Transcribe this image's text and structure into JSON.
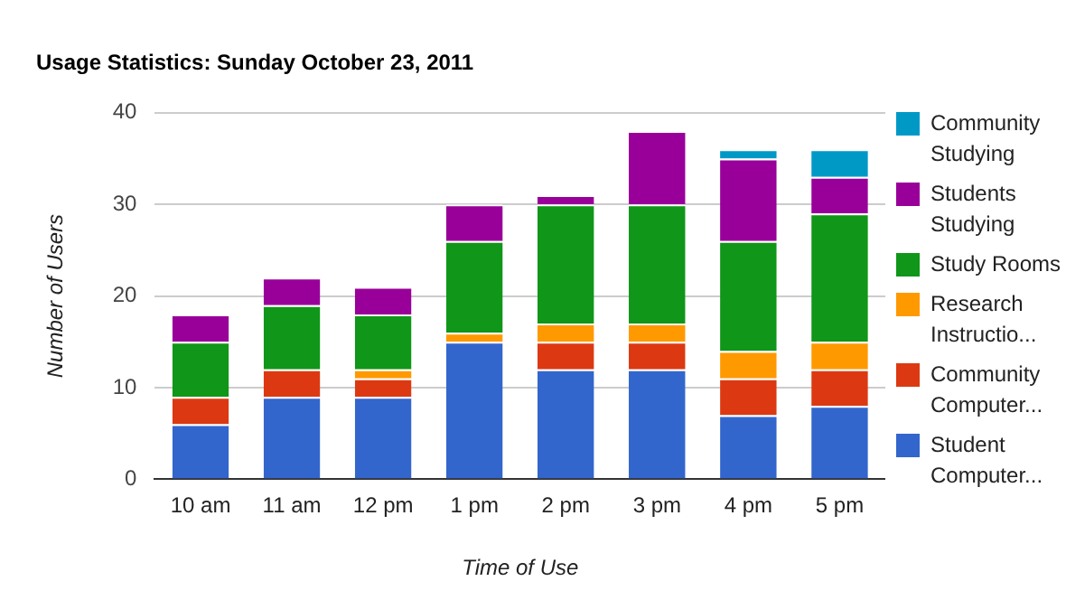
{
  "chart_data": {
    "type": "bar",
    "title": "Usage Statistics: Sunday October 23, 2011",
    "xlabel": "Time of Use",
    "ylabel": "Number of Users",
    "stacked": true,
    "legend": "right",
    "grid": "y",
    "categories": [
      "10 am",
      "11 am",
      "12 pm",
      "1 pm",
      "2 pm",
      "3 pm",
      "4 pm",
      "5 pm"
    ],
    "ylim": [
      0,
      40
    ],
    "yticks": [
      0,
      10,
      20,
      30,
      40
    ],
    "series": [
      {
        "name": "Student Computer...",
        "color": "#3366cc",
        "values": [
          6,
          9,
          9,
          15,
          12,
          12,
          7,
          8
        ]
      },
      {
        "name": "Community Computer...",
        "color": "#dc3912",
        "values": [
          3,
          3,
          2,
          0,
          3,
          3,
          4,
          4
        ]
      },
      {
        "name": "Research Instructio...",
        "color": "#ff9900",
        "values": [
          0,
          0,
          1,
          1,
          2,
          2,
          3,
          3
        ]
      },
      {
        "name": "Study Rooms",
        "color": "#109618",
        "values": [
          6,
          7,
          6,
          10,
          13,
          13,
          12,
          14
        ]
      },
      {
        "name": "Students Studying",
        "color": "#990099",
        "values": [
          3,
          3,
          3,
          4,
          1,
          8,
          9,
          4
        ]
      },
      {
        "name": "Community Studying",
        "color": "#0099c6",
        "values": [
          0,
          0,
          0,
          0,
          0,
          0,
          1,
          3
        ]
      }
    ]
  }
}
